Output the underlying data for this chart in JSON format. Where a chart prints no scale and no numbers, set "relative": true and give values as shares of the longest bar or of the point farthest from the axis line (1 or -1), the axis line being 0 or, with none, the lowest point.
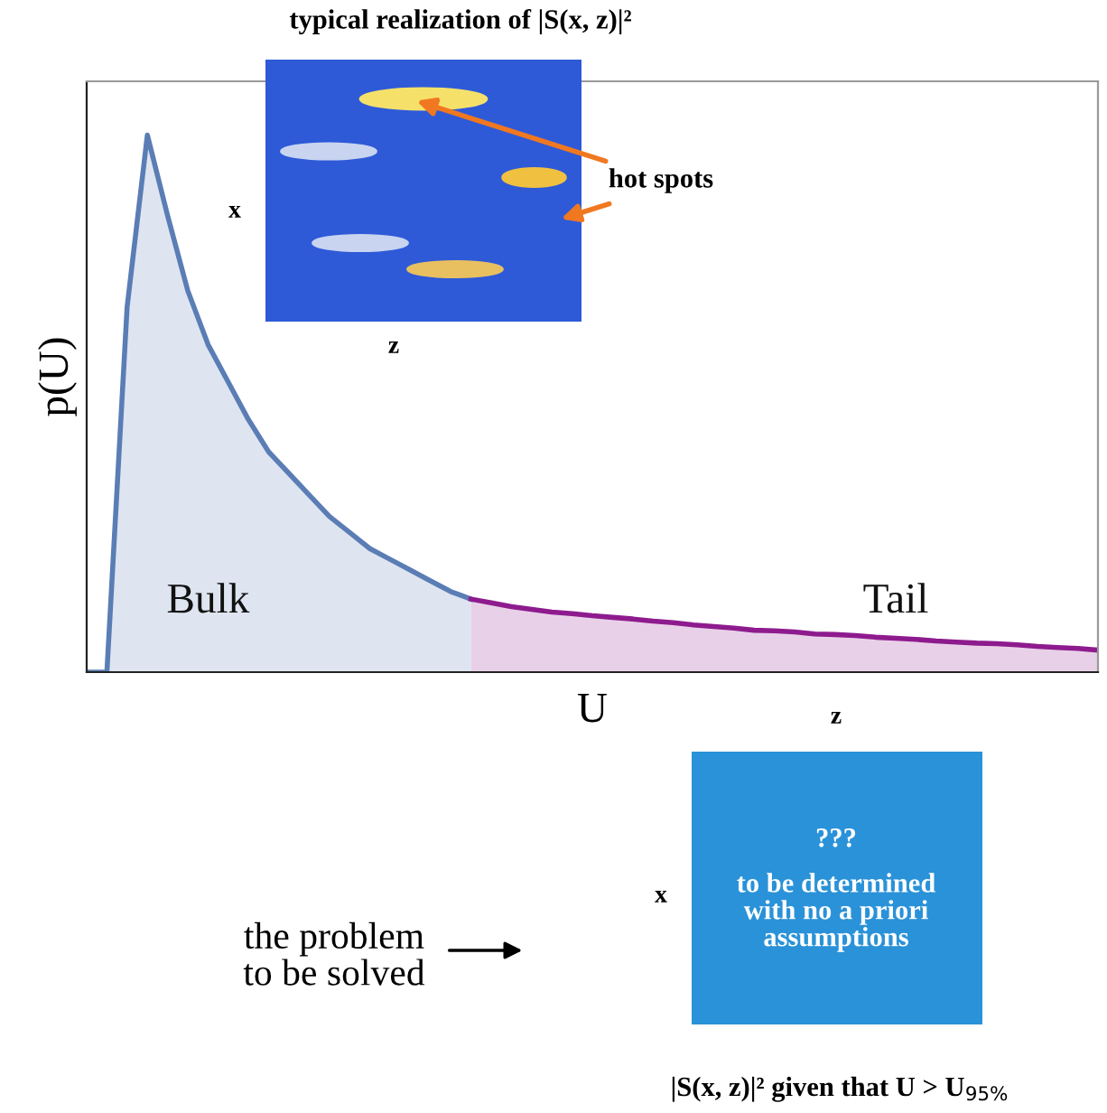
{
  "chart_data": {
    "type": "area",
    "relative": true,
    "xlabel": "U",
    "ylabel": "p(U)",
    "categories": [
      null,
      null,
      null,
      null,
      null,
      null,
      null,
      null,
      null,
      null,
      null,
      null,
      null,
      null,
      null,
      null,
      null,
      null,
      null,
      null,
      null,
      null,
      null,
      null,
      null,
      null,
      null,
      null,
      null,
      null,
      null,
      null,
      null,
      null,
      null,
      null,
      null,
      null,
      null,
      null,
      null,
      null,
      null,
      null,
      null,
      null,
      null,
      null,
      null,
      null,
      null
    ],
    "series": [
      {
        "name": "Bulk",
        "color": "#5a7db5",
        "values": [
          0,
          0,
          0.68,
          1,
          0.85,
          0.71,
          0.61,
          0.54,
          0.47,
          0.41,
          0.37,
          0.33,
          0.29,
          0.26,
          0.23,
          0.21,
          0.19,
          0.17,
          0.15,
          0.136,
          null,
          null,
          null,
          null,
          null,
          null,
          null,
          null,
          null,
          null,
          null,
          null,
          null,
          null,
          null,
          null,
          null,
          null,
          null,
          null,
          null,
          null,
          null,
          null,
          null,
          null,
          null,
          null,
          null,
          null,
          null
        ]
      },
      {
        "name": "Tail",
        "color": "#8e1b8e",
        "values": [
          null,
          null,
          null,
          null,
          null,
          null,
          null,
          null,
          null,
          null,
          null,
          null,
          null,
          null,
          null,
          null,
          null,
          null,
          null,
          0.136,
          0.129,
          0.122,
          0.117,
          0.112,
          0.109,
          0.105,
          0.102,
          0.099,
          0.095,
          0.092,
          0.088,
          0.085,
          0.082,
          0.078,
          0.077,
          0.075,
          0.071,
          0.07,
          0.068,
          0.065,
          0.063,
          0.061,
          0.058,
          0.056,
          0.054,
          0.053,
          0.051,
          0.048,
          0.046,
          0.044,
          0.041
        ]
      }
    ],
    "annotations": [
      "typical realization of |S(x, z)|²",
      "x",
      "z",
      "hot spots",
      "z",
      "x",
      "???",
      "to be determined\nwith no a priori\nassumptions",
      "the problem\nto be solved",
      "|S(x, z)|² given that U > U$_{95%}$"
    ]
  }
}
